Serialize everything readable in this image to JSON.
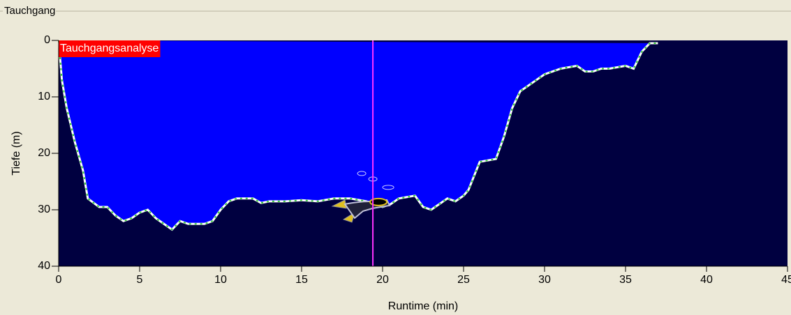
{
  "group_label": "Tauchgang",
  "chart_data": {
    "type": "area",
    "title": "Tauchgangsanalyse",
    "x_label": "Runtime (min)",
    "y_label": "Tiefe (m)",
    "x": [
      0,
      0.2,
      0.5,
      1,
      1.5,
      1.8,
      2.5,
      3,
      3.5,
      4,
      4.5,
      5,
      5.5,
      6,
      6.5,
      7,
      7.5,
      8,
      9,
      9.5,
      10,
      10.5,
      11,
      12,
      12.5,
      13,
      14,
      15,
      16,
      17,
      18,
      19,
      20,
      20.5,
      21,
      22,
      22.5,
      23,
      23.5,
      24,
      24.5,
      25,
      25.3,
      26,
      27,
      27.5,
      28,
      28.5,
      29,
      29.5,
      30,
      31,
      32,
      32.5,
      33,
      33.5,
      34,
      35,
      35.5,
      36,
      36.5,
      37
    ],
    "values": [
      0,
      7,
      12,
      18,
      23,
      28,
      29.5,
      29.5,
      31,
      32,
      31.5,
      30.5,
      30,
      31.5,
      32.5,
      33.5,
      32,
      32.5,
      32.5,
      32,
      30,
      28.5,
      28,
      28,
      28.8,
      28.5,
      28.5,
      28.3,
      28.5,
      28,
      28,
      28.5,
      29.5,
      29,
      28,
      27.5,
      29.5,
      30,
      29,
      28,
      28.5,
      27.5,
      26.5,
      21.5,
      21,
      17,
      12,
      9,
      8,
      7,
      6,
      5,
      4.5,
      5.5,
      5.5,
      5,
      5,
      4.5,
      5,
      2,
      0.5,
      0.5
    ],
    "xlim": [
      0,
      45
    ],
    "ylim": [
      0,
      40
    ],
    "y_inverted": true,
    "xticks": [
      0,
      5,
      10,
      15,
      20,
      25,
      30,
      35,
      40,
      45
    ],
    "yticks": [
      0,
      10,
      20,
      30,
      40
    ],
    "cursor_x": 19.4,
    "area_color": "#0000ff",
    "background_color": "#000040",
    "line_color": "#ffffff",
    "marker_color": "#33cc33",
    "cursor_color": "#ff33ff"
  }
}
